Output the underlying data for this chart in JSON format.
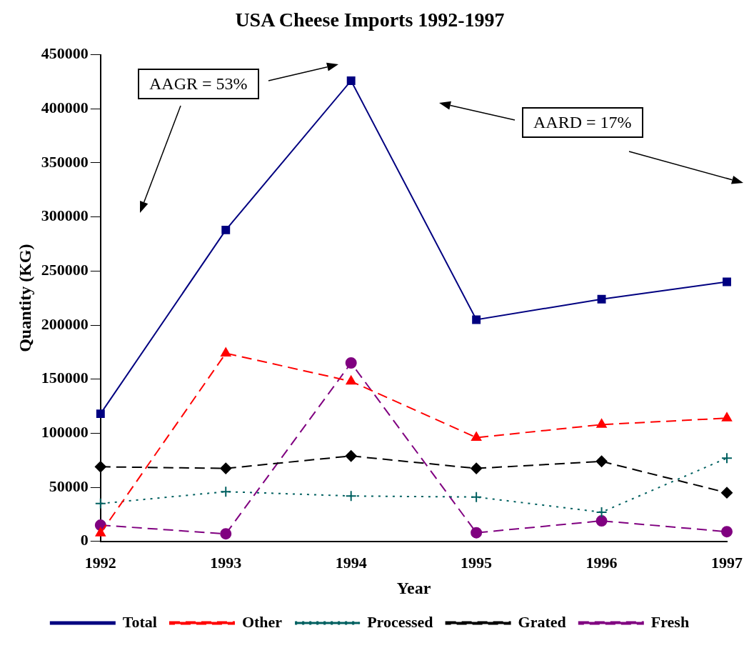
{
  "chart_data": {
    "type": "line",
    "title": "USA Cheese Imports 1992-1997",
    "xlabel": "Year",
    "ylabel": "Quantity (KG)",
    "categories": [
      "1992",
      "1993",
      "1994",
      "1995",
      "1996",
      "1997"
    ],
    "ylim": [
      0,
      450000
    ],
    "yticks": [
      0,
      50000,
      100000,
      150000,
      200000,
      250000,
      300000,
      350000,
      400000,
      450000
    ],
    "grid": false,
    "legend": "bottom",
    "annotations": [
      "AAGR = 53%",
      "AARD = 17%"
    ],
    "series": [
      {
        "name": "Total",
        "color": "#000080",
        "marker": "square",
        "line_style": "solid",
        "values": [
          118000,
          288000,
          426000,
          205000,
          224000,
          240000
        ]
      },
      {
        "name": "Other",
        "color": "#ff0000",
        "marker": "triangle",
        "line_style": "dashed",
        "values": [
          7600,
          174000,
          148000,
          96000,
          108000,
          114000
        ]
      },
      {
        "name": "Processed",
        "color": "#006060",
        "marker": "cross",
        "line_style": "dotted",
        "values": [
          35000,
          46000,
          42000,
          41000,
          27000,
          77000
        ]
      },
      {
        "name": "Grated",
        "color": "#000000",
        "marker": "diamond",
        "line_style": "dashed",
        "values": [
          69000,
          67500,
          79000,
          67500,
          74000,
          45000
        ]
      },
      {
        "name": "Fresh",
        "color": "#800080",
        "marker": "circle",
        "line_style": "dashed",
        "values": [
          15000,
          7000,
          165000,
          8000,
          19000,
          9000
        ]
      }
    ]
  }
}
